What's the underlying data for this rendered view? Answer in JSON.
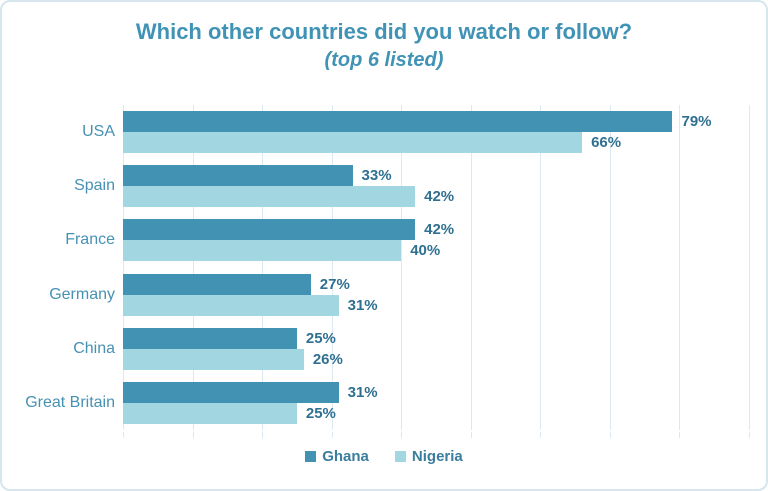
{
  "chart_data": {
    "type": "bar",
    "orientation": "horizontal",
    "title": "Which other countries did you watch or follow?",
    "subtitle": "(top 6 listed)",
    "categories": [
      "USA",
      "Spain",
      "France",
      "Germany",
      "China",
      "Great Britain"
    ],
    "series": [
      {
        "name": "Ghana",
        "color": "#4292B4",
        "values": [
          79,
          33,
          42,
          27,
          25,
          31
        ]
      },
      {
        "name": "Nigeria",
        "color": "#A2D7E2",
        "values": [
          66,
          42,
          40,
          31,
          26,
          25
        ]
      }
    ],
    "value_suffix": "%",
    "data_labels_visible": true,
    "axis": {
      "min": 0,
      "max": 90,
      "step": 10,
      "gridlines": true,
      "tick_labels_visible": false
    },
    "legend_position": "bottom",
    "colors": {
      "title": "#4193B6",
      "category-label": "#4791B2",
      "value-label": "#2F7091",
      "legend-label": "#3A7D9E",
      "gridline": "#DCE9F1",
      "border": "#D7E5EE"
    }
  }
}
